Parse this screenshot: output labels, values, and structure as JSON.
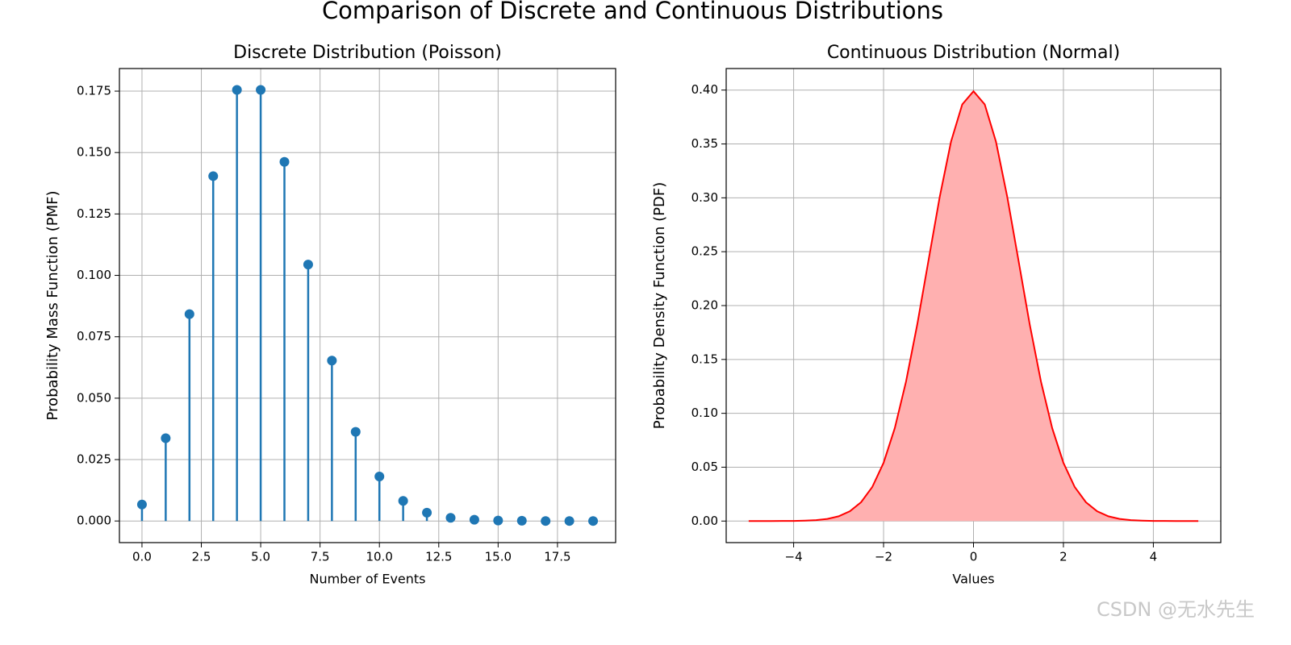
{
  "suptitle": "Comparison of Discrete and Continuous Distributions",
  "watermark": "CSDN @无水先生",
  "chart_data": [
    {
      "type": "stem",
      "title": "Discrete Distribution (Poisson)",
      "xlabel": "Number of Events",
      "ylabel": "Probability Mass Function (PMF)",
      "color": "#1f77b4",
      "grid": true,
      "x": [
        0,
        1,
        2,
        3,
        4,
        5,
        6,
        7,
        8,
        9,
        10,
        11,
        12,
        13,
        14,
        15,
        16,
        17,
        18,
        19
      ],
      "values": [
        0.0067,
        0.0337,
        0.0842,
        0.1404,
        0.1755,
        0.1755,
        0.1462,
        0.1044,
        0.0653,
        0.0363,
        0.0181,
        0.0082,
        0.0034,
        0.0013,
        0.0005,
        0.0002,
        0.0001,
        0.0,
        0.0,
        0.0
      ],
      "xlim": [
        -0.95,
        19.95
      ],
      "ylim": [
        -0.0088,
        0.1842
      ],
      "xticks": [
        {
          "value": 0,
          "label": "0.0"
        },
        {
          "value": 2.5,
          "label": "2.5"
        },
        {
          "value": 5,
          "label": "5.0"
        },
        {
          "value": 7.5,
          "label": "7.5"
        },
        {
          "value": 10,
          "label": "10.0"
        },
        {
          "value": 12.5,
          "label": "12.5"
        },
        {
          "value": 15,
          "label": "15.0"
        },
        {
          "value": 17.5,
          "label": "17.5"
        }
      ],
      "yticks": [
        {
          "value": 0,
          "label": "0.000"
        },
        {
          "value": 0.025,
          "label": "0.025"
        },
        {
          "value": 0.05,
          "label": "0.050"
        },
        {
          "value": 0.075,
          "label": "0.075"
        },
        {
          "value": 0.1,
          "label": "0.100"
        },
        {
          "value": 0.125,
          "label": "0.125"
        },
        {
          "value": 0.15,
          "label": "0.150"
        },
        {
          "value": 0.175,
          "label": "0.175"
        }
      ]
    },
    {
      "type": "area",
      "title": "Continuous Distribution (Normal)",
      "xlabel": "Values",
      "ylabel": "Probability Density Function (PDF)",
      "color": "#ff0000",
      "fill": "#ffb0b0",
      "grid": true,
      "x": [
        -5,
        -4.75,
        -4.5,
        -4.25,
        -4,
        -3.75,
        -3.5,
        -3.25,
        -3,
        -2.75,
        -2.5,
        -2.25,
        -2,
        -1.75,
        -1.5,
        -1.25,
        -1,
        -0.75,
        -0.5,
        -0.25,
        0,
        0.25,
        0.5,
        0.75,
        1,
        1.25,
        1.5,
        1.75,
        2,
        2.25,
        2.5,
        2.75,
        3,
        3.25,
        3.5,
        3.75,
        4,
        4.25,
        4.5,
        4.75,
        5
      ],
      "values": [
        0,
        0,
        0,
        0.0001,
        0.0001,
        0.0004,
        0.0009,
        0.002,
        0.0044,
        0.0091,
        0.0175,
        0.0317,
        0.054,
        0.0863,
        0.1295,
        0.1826,
        0.242,
        0.3011,
        0.3521,
        0.3867,
        0.3989,
        0.3867,
        0.3521,
        0.3011,
        0.242,
        0.1826,
        0.1295,
        0.0863,
        0.054,
        0.0317,
        0.0175,
        0.0091,
        0.0044,
        0.002,
        0.0009,
        0.0004,
        0.0001,
        0.0001,
        0,
        0,
        0
      ],
      "xlim": [
        -5.5,
        5.5
      ],
      "ylim": [
        -0.02,
        0.42
      ],
      "xticks": [
        {
          "value": -4,
          "label": "−4"
        },
        {
          "value": -2,
          "label": "−2"
        },
        {
          "value": 0,
          "label": "0"
        },
        {
          "value": 2,
          "label": "2"
        },
        {
          "value": 4,
          "label": "4"
        }
      ],
      "yticks": [
        {
          "value": 0,
          "label": "0.00"
        },
        {
          "value": 0.05,
          "label": "0.05"
        },
        {
          "value": 0.1,
          "label": "0.10"
        },
        {
          "value": 0.15,
          "label": "0.15"
        },
        {
          "value": 0.2,
          "label": "0.20"
        },
        {
          "value": 0.25,
          "label": "0.25"
        },
        {
          "value": 0.3,
          "label": "0.30"
        },
        {
          "value": 0.35,
          "label": "0.35"
        },
        {
          "value": 0.4,
          "label": "0.40"
        }
      ]
    }
  ]
}
